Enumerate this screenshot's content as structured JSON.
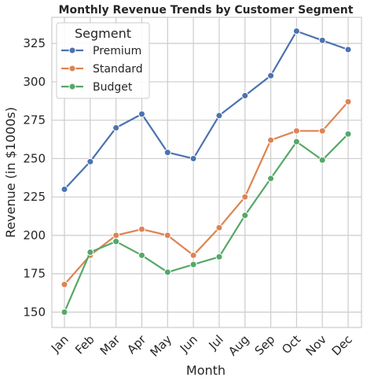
{
  "chart_data": {
    "type": "line",
    "title": "Monthly Revenue Trends by Customer Segment",
    "xlabel": "Month",
    "ylabel": "Revenue (in $1000s)",
    "categories": [
      "Jan",
      "Feb",
      "Mar",
      "Apr",
      "May",
      "Jun",
      "Jul",
      "Aug",
      "Sep",
      "Oct",
      "Nov",
      "Dec"
    ],
    "ylim": [
      140,
      342
    ],
    "yticks": [
      150,
      175,
      200,
      225,
      250,
      275,
      300,
      325
    ],
    "grid": true,
    "legend": {
      "title": "Segment",
      "placement": "top-left"
    },
    "series": [
      {
        "name": "Premium",
        "color": "#4c72b0",
        "values": [
          230,
          248,
          270,
          279,
          254,
          250,
          278,
          291,
          304,
          333,
          327,
          321
        ]
      },
      {
        "name": "Standard",
        "color": "#dd8452",
        "values": [
          168,
          187,
          200,
          204,
          200,
          187,
          205,
          225,
          262,
          268,
          268,
          287
        ]
      },
      {
        "name": "Budget",
        "color": "#55a868",
        "values": [
          150,
          189,
          196,
          187,
          176,
          181,
          186,
          213,
          237,
          261,
          249,
          266
        ]
      }
    ]
  }
}
